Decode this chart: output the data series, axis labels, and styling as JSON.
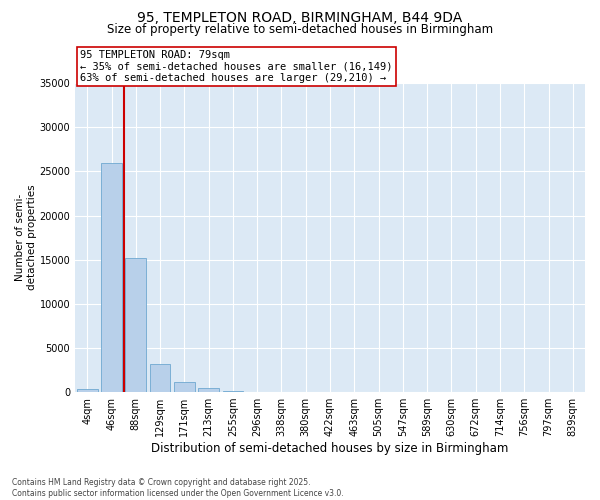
{
  "title": "95, TEMPLETON ROAD, BIRMINGHAM, B44 9DA",
  "subtitle": "Size of property relative to semi-detached houses in Birmingham",
  "xlabel": "Distribution of semi-detached houses by size in Birmingham",
  "ylabel": "Number of semi-\ndetached properties",
  "bin_labels": [
    "4sqm",
    "46sqm",
    "88sqm",
    "129sqm",
    "171sqm",
    "213sqm",
    "255sqm",
    "296sqm",
    "338sqm",
    "380sqm",
    "422sqm",
    "463sqm",
    "505sqm",
    "547sqm",
    "589sqm",
    "630sqm",
    "672sqm",
    "714sqm",
    "756sqm",
    "797sqm",
    "839sqm"
  ],
  "bar_heights": [
    300,
    26000,
    15200,
    3200,
    1100,
    450,
    120,
    30,
    0,
    0,
    0,
    0,
    0,
    0,
    0,
    0,
    0,
    0,
    0,
    0,
    0
  ],
  "bar_color": "#b8d0ea",
  "bar_edge_color": "#6fa8d0",
  "vline_x": 1.5,
  "vline_color": "#cc0000",
  "annotation_box_color": "#cc0000",
  "ann_line1": "95 TEMPLETON ROAD: 79sqm",
  "ann_line2": "← 35% of semi-detached houses are smaller (16,149)",
  "ann_line3": "63% of semi-detached houses are larger (29,210) →",
  "ylim": [
    0,
    35000
  ],
  "yticks": [
    0,
    5000,
    10000,
    15000,
    20000,
    25000,
    30000,
    35000
  ],
  "background_color": "#dce9f5",
  "grid_color": "#ffffff",
  "footnote": "Contains HM Land Registry data © Crown copyright and database right 2025.\nContains public sector information licensed under the Open Government Licence v3.0.",
  "title_fontsize": 10,
  "subtitle_fontsize": 8.5,
  "xlabel_fontsize": 8.5,
  "ylabel_fontsize": 7.5,
  "tick_fontsize": 7,
  "ann_fontsize": 7.5,
  "footnote_fontsize": 5.5
}
